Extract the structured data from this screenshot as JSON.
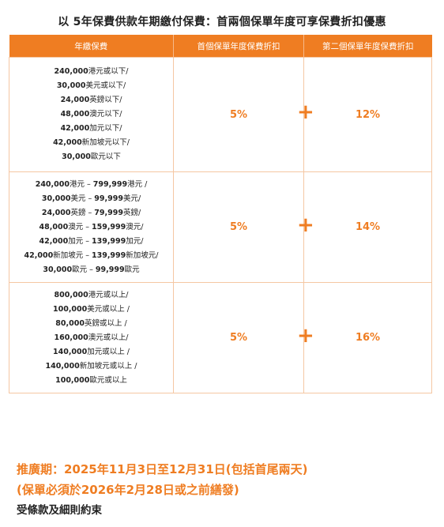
{
  "title": "以 5年保費供款年期繳付保費：首兩個保單年度可享保費折扣優惠",
  "table": {
    "headers": [
      "年繳保費",
      "首個保單年度保費折扣",
      "第二個保單年度保費折扣"
    ],
    "rows": [
      {
        "lines": [
          {
            "amount": "240,000",
            "text": "港元或以下/"
          },
          {
            "amount": "30,000",
            "text": "美元或以下/"
          },
          {
            "amount": "24,000",
            "text": "英鎊以下/"
          },
          {
            "amount": "48,000",
            "text": "澳元以下/"
          },
          {
            "amount": "42,000",
            "text": "加元以下/"
          },
          {
            "amount": "42,000",
            "text": "新加坡元以下/"
          },
          {
            "amount": "30,000",
            "text": "歐元以下"
          }
        ],
        "first": "5%",
        "plus": "+",
        "second": "12%"
      },
      {
        "lines": [
          {
            "amount": "240,000",
            "text": "港元 – ",
            "amount2": "799,999",
            "text2": "港元 /"
          },
          {
            "amount": "30,000",
            "text": "美元 – ",
            "amount2": "99,999",
            "text2": "美元/"
          },
          {
            "amount": "24,000",
            "text": "英鎊 – ",
            "amount2": "79,999",
            "text2": "英鎊/"
          },
          {
            "amount": "48,000",
            "text": "澳元 – ",
            "amount2": "159,999",
            "text2": "澳元/"
          },
          {
            "amount": "42,000",
            "text": "加元 – ",
            "amount2": "139,999",
            "text2": "加元/"
          },
          {
            "amount": "42,000",
            "text": "新加坡元 – ",
            "amount2": "139,999",
            "text2": "新加坡元/"
          },
          {
            "amount": "30,000",
            "text": "歐元 – ",
            "amount2": "99,999",
            "text2": "歐元"
          }
        ],
        "first": "5%",
        "plus": "+",
        "second": "14%"
      },
      {
        "lines": [
          {
            "amount": "800,000",
            "text": "港元或以上/"
          },
          {
            "amount": "100,000",
            "text": "美元或以上 /"
          },
          {
            "amount": "80,000",
            "text": "英鎊或以上 /"
          },
          {
            "amount": "160,000",
            "text": "澳元或以上/"
          },
          {
            "amount": "140,000",
            "text": "加元或以上 /"
          },
          {
            "amount": "140,000",
            "text": "新加坡元或以上 /"
          },
          {
            "amount": "100,000",
            "text": "歐元或以上"
          }
        ],
        "first": "5%",
        "plus": "+",
        "second": "16%"
      }
    ]
  },
  "promo": {
    "line1": "推廣期：2025年11月3日至12月31日(包括首尾兩天)",
    "line2": "(保單必須於2026年2月28日或之前繕發)"
  },
  "terms": "受條款及細則約束",
  "colors": {
    "accent": "#ef7d22",
    "border": "#f5c7a3"
  }
}
